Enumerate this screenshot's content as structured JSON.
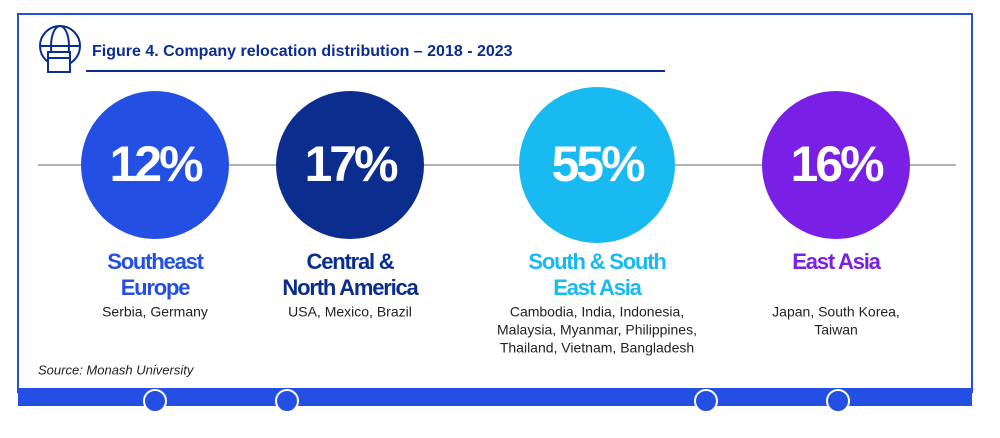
{
  "header": {
    "title": "Figure 4. Company relocation distribution – 2018 - 2023"
  },
  "items": [
    {
      "percent": "12%",
      "region": [
        "Southeast",
        "Europe"
      ],
      "countries": [
        "Serbia, Germany"
      ],
      "color": "#2350e2",
      "text_color": "#2350e2"
    },
    {
      "percent": "17%",
      "region": [
        "Central &",
        "North America"
      ],
      "countries": [
        "USA, Mexico, Brazil"
      ],
      "color": "#0b2d8e",
      "text_color": "#0b2d8e"
    },
    {
      "percent": "55%",
      "region": [
        "South & South",
        "East Asia"
      ],
      "countries": [
        "Cambodia, India, Indonesia,",
        "Malaysia, Myanmar, Philippines,",
        "Thailand, Vietnam, Bangladesh"
      ],
      "color": "#19b9f1",
      "text_color": "#19b9f1"
    },
    {
      "percent": "16%",
      "region": [
        "East Asia"
      ],
      "countries": [
        "Japan, South Korea,",
        "Taiwan"
      ],
      "color": "#7a1fe6",
      "text_color": "#7a1fe6"
    }
  ],
  "source": "Source: Monash University"
}
